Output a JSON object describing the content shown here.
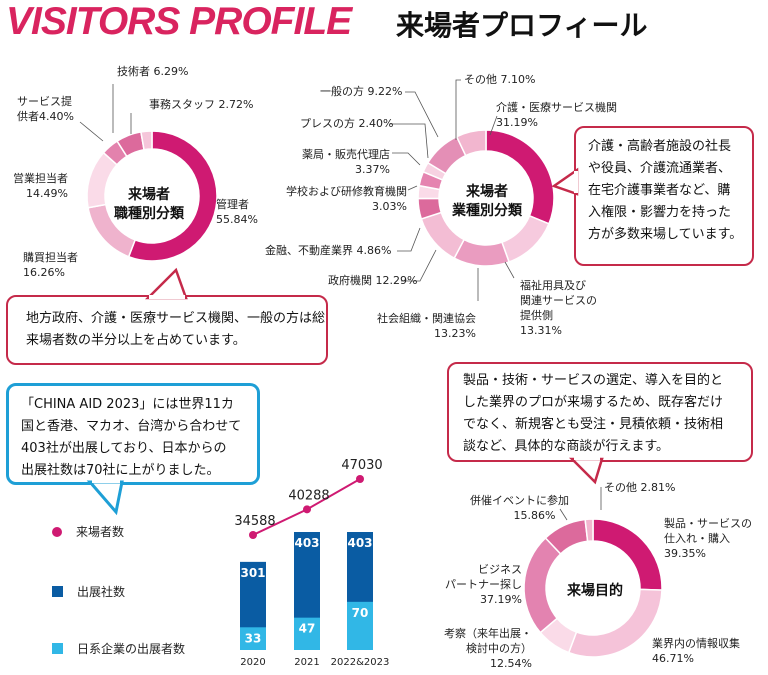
{
  "header": {
    "title_en": "VISITORS PROFILE",
    "title_jp": "来場者プロフィール"
  },
  "chart_data": [
    {
      "type": "pie",
      "center_label": [
        "来場者",
        "職種別分類"
      ],
      "slices": [
        {
          "label": "管理者",
          "value": 55.84,
          "text": "55.84%",
          "color": "#cf1a72"
        },
        {
          "label": "購買担当者",
          "value": 16.26,
          "text": "16.26%",
          "color": "#efb3cd"
        },
        {
          "label": "営業担当者",
          "value": 14.49,
          "text": "14.49%",
          "color": "#fadbe8"
        },
        {
          "label": "サービス提供者",
          "value": 4.4,
          "text": "4.40%",
          "color": "#e382ad"
        },
        {
          "label": "技術者",
          "value": 6.29,
          "text": "6.29%",
          "color": "#dc6a9c"
        },
        {
          "label": "事務スタッフ",
          "value": 2.72,
          "text": "2.72%",
          "color": "#f5c6da"
        }
      ]
    },
    {
      "type": "pie",
      "center_label": [
        "来場者",
        "業種別分類"
      ],
      "slices": [
        {
          "label": "介護・医療サービス機関",
          "value": 31.19,
          "text": "31.19%",
          "color": "#cf1a72"
        },
        {
          "label": "福祉用具及び関連サービスの提供側",
          "value": 13.31,
          "text": "13.31%",
          "color": "#f6cade"
        },
        {
          "label": "社会組織・関連協会",
          "value": 13.23,
          "text": "13.23%",
          "color": "#ea9cc0"
        },
        {
          "label": "政府機関",
          "value": 12.29,
          "text": "12.29%",
          "color": "#f3bdd4"
        },
        {
          "label": "金融、不動産業界",
          "value": 4.86,
          "text": "4.86%",
          "color": "#dc6a9c"
        },
        {
          "label": "学校および研修教育機関",
          "value": 3.03,
          "text": "3.03%",
          "color": "#fadbe8"
        },
        {
          "label": "薬局・販売代理店",
          "value": 3.37,
          "text": "3.37%",
          "color": "#e584b0"
        },
        {
          "label": "プレスの方",
          "value": 2.4,
          "text": "2.40%",
          "color": "#f7d2e2"
        },
        {
          "label": "一般の方",
          "value": 9.22,
          "text": "9.22%",
          "color": "#e48fb6"
        },
        {
          "label": "その他",
          "value": 7.1,
          "text": "7.10%",
          "color": "#f2b6cf"
        }
      ]
    },
    {
      "type": "bar",
      "categories": [
        "2020",
        "2021",
        "2022&2023"
      ],
      "series": [
        {
          "name": "出展社数",
          "values": [
            301,
            403,
            403
          ],
          "color": "#0a5ca3"
        },
        {
          "name": "日系企業の出展者数",
          "values": [
            33,
            47,
            70
          ],
          "color": "#31b7e6"
        }
      ],
      "line_series": {
        "name": "来場者数",
        "values": [
          34588,
          40288,
          47030
        ],
        "color": "#cf1a72"
      }
    },
    {
      "type": "pie",
      "center_label": [
        "来場目的"
      ],
      "slices": [
        {
          "label": "製品・サービスの仕入れ・購入",
          "value": 39.35,
          "text": "39.35%",
          "color": "#cf1a72"
        },
        {
          "label": "業界内の情報収集",
          "value": 46.71,
          "text": "46.71%",
          "color": "#f5c3d9"
        },
        {
          "label": "考察（来年出展・検討中の方）",
          "value": 12.54,
          "text": "12.54%",
          "color": "#fadbe8"
        },
        {
          "label": "ビジネスパートナー探し",
          "value": 37.19,
          "text": "37.19%",
          "color": "#e383b0"
        },
        {
          "label": "併催イベントに参加",
          "value": 15.86,
          "text": "15.86%",
          "color": "#dc6a9c"
        },
        {
          "label": "その他",
          "value": 2.81,
          "text": "2.81%",
          "color": "#f2b6cf"
        }
      ]
    }
  ],
  "pie1_labels": {
    "tech": "技術者 6.29%",
    "office": "事務スタッフ 2.72%",
    "service": [
      "サービス提",
      "供者4.40%"
    ],
    "sales": [
      "営業担当者",
      "14.49%"
    ],
    "purchase": [
      "購買担当者",
      "16.26%"
    ],
    "manager": [
      "管理者",
      "55.84%"
    ]
  },
  "pie2_labels": {
    "other": "その他 7.10%",
    "general": "一般の方 9.22%",
    "press": "プレスの方 2.40%",
    "pharmacy": [
      "薬局・販売代理店",
      "3.37%"
    ],
    "school": [
      "学校および研修教育機関",
      "3.03%"
    ],
    "finance": "金融、不動産業界 4.86%",
    "gov": "政府機関 12.29%",
    "social": [
      "社会組織・関連協会",
      "13.23%"
    ],
    "care": [
      "介護・医療サービス機関",
      "31.19%"
    ],
    "welfare": [
      "福祉用具及び",
      "関連サービスの",
      "提供側",
      "13.31%"
    ]
  },
  "pie3_labels": {
    "other": "その他 2.81%",
    "event": [
      "併催イベントに参加",
      "15.86%"
    ],
    "buy": [
      "製品・サービスの",
      "仕入れ・購入",
      "39.35%"
    ],
    "partner": [
      "ビジネス",
      "パートナー探し",
      "37.19%"
    ],
    "consider": [
      "考察（来年出展・",
      "検討中の方）",
      "12.54%"
    ],
    "info": [
      "業界内の情報収集",
      "46.71%"
    ]
  },
  "bubbles": {
    "industry_note": [
      "介護・高齢者施設の社長",
      "や役員、介護流通業者、",
      "在宅介護事業者など、購",
      "入権限・影響力を持った",
      "方が多数来場しています。"
    ],
    "job_note": [
      "地方政府、介護・医療サービス機関、一般の方は総",
      "来場者数の半分以上を占めています。"
    ],
    "china_note": [
      "「CHINA AID 2023」には世界11カ",
      "国と香港、マカオ、台湾から合わせて",
      "403社が出展しており、日本からの",
      "出展社数は70社に上がりました。"
    ],
    "purpose_note": [
      "製品・技術・サービスの選定、導入を目的と",
      "した業界のプロが来場するため、既存客だけ",
      "でなく、新規客とも受注・見積依頼・技術相",
      "談など、具体的な商談が行えます。"
    ]
  },
  "legend": {
    "visitors": "来場者数",
    "exhibitors": "出展社数",
    "japanese": "日系企業の出展者数"
  }
}
